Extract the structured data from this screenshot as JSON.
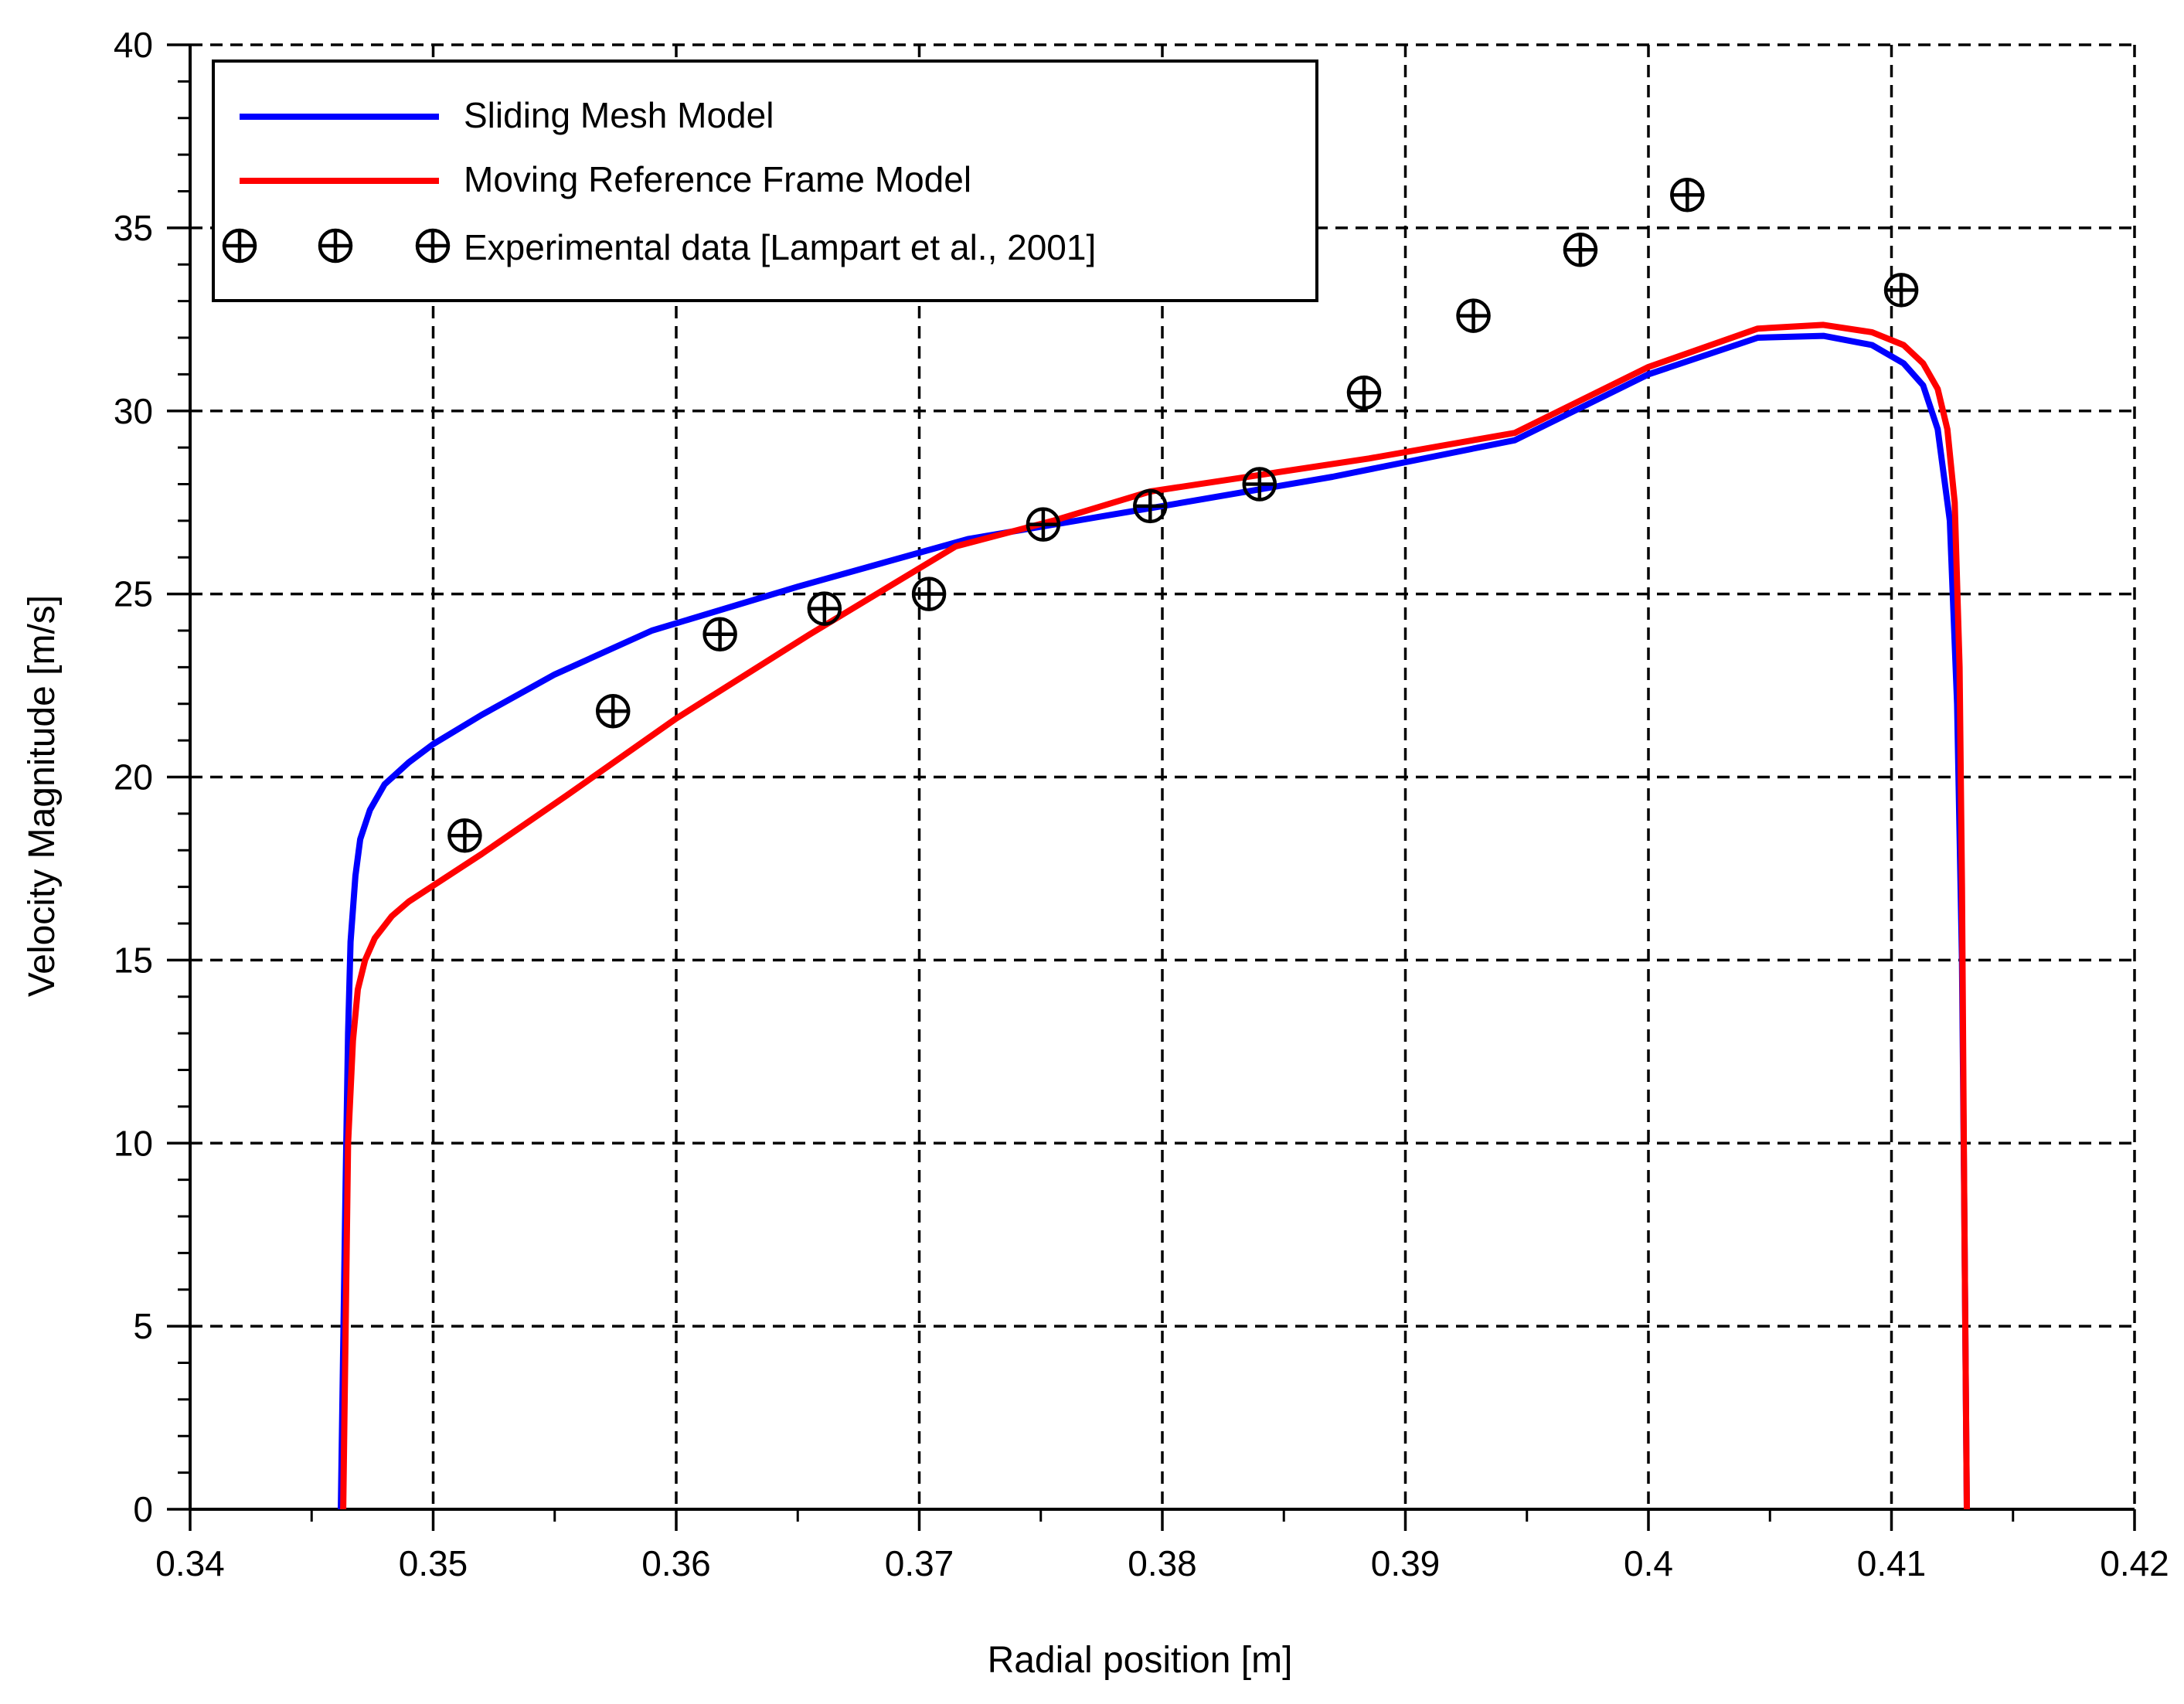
{
  "chart_data": {
    "type": "line",
    "title": "",
    "xlabel": "Radial position [m]",
    "ylabel": "Velocity Magnitude [m/s]",
    "xlim": [
      0.34,
      0.42
    ],
    "ylim": [
      0,
      40
    ],
    "x_ticks": [
      "0.34",
      "0.35",
      "0.36",
      "0.37",
      "0.38",
      "0.39",
      "0.4",
      "0.41",
      "0.42"
    ],
    "y_ticks": [
      "0",
      "5",
      "10",
      "15",
      "20",
      "25",
      "30",
      "35",
      "40"
    ],
    "grid": true,
    "legend_position": "top-left",
    "series": [
      {
        "name": "Sliding Mesh Model",
        "kind": "line",
        "color": "#0000ff",
        "x": [
          0.3462,
          0.3464,
          0.3465,
          0.3466,
          0.3468,
          0.347,
          0.3474,
          0.348,
          0.349,
          0.35,
          0.352,
          0.355,
          0.359,
          0.365,
          0.372,
          0.38,
          0.387,
          0.3945,
          0.4,
          0.4045,
          0.4072,
          0.4092,
          0.4105,
          0.4113,
          0.4119,
          0.4124,
          0.4127,
          0.4129,
          0.413,
          0.4131
        ],
        "y": [
          0,
          9,
          13,
          15.5,
          17.3,
          18.3,
          19.1,
          19.8,
          20.4,
          20.9,
          21.7,
          22.8,
          24.0,
          25.2,
          26.5,
          27.4,
          28.2,
          29.2,
          31.0,
          32.0,
          32.05,
          31.8,
          31.3,
          30.7,
          29.5,
          27,
          22,
          15,
          8,
          0
        ]
      },
      {
        "name": "Moving Reference Frame Model",
        "kind": "line",
        "color": "#ff0000",
        "x": [
          0.3463,
          0.3465,
          0.3467,
          0.3469,
          0.3472,
          0.3476,
          0.3483,
          0.349,
          0.352,
          0.3555,
          0.36,
          0.3655,
          0.3715,
          0.3755,
          0.3795,
          0.3845,
          0.3885,
          0.3945,
          0.4,
          0.4045,
          0.4072,
          0.4092,
          0.4105,
          0.4113,
          0.4119,
          0.4123,
          0.4126,
          0.4128,
          0.4129,
          0.413,
          0.4131
        ],
        "y": [
          0,
          10,
          12.8,
          14.2,
          15,
          15.6,
          16.2,
          16.6,
          17.9,
          19.5,
          21.6,
          23.9,
          26.3,
          27.0,
          27.8,
          28.3,
          28.7,
          29.4,
          31.2,
          32.25,
          32.35,
          32.15,
          31.8,
          31.3,
          30.6,
          29.5,
          27.5,
          23,
          17,
          8,
          0
        ]
      },
      {
        "name": "Experimental data [Lampart et al., 2001]",
        "kind": "scatter",
        "marker": "circle-plus",
        "color": "#000000",
        "x": [
          0.3513,
          0.3574,
          0.3618,
          0.3661,
          0.3704,
          0.3751,
          0.3795,
          0.384,
          0.3883,
          0.3928,
          0.3972,
          0.4016,
          0.4104
        ],
        "y": [
          18.4,
          21.8,
          23.9,
          24.6,
          25.0,
          26.9,
          27.4,
          28.0,
          30.5,
          32.6,
          34.4,
          35.9,
          33.3
        ]
      }
    ]
  }
}
